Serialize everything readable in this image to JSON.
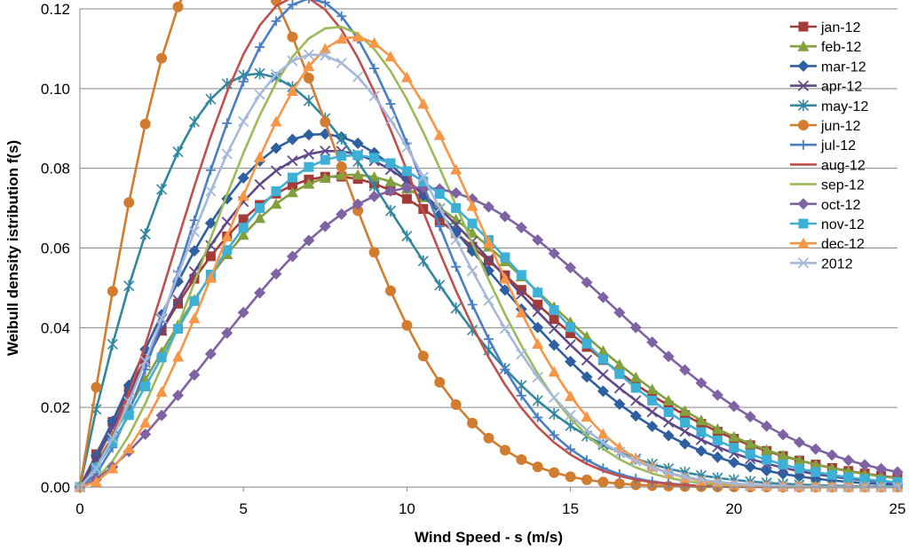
{
  "chart_data": {
    "type": "line",
    "title": "",
    "xlabel": "Wind Speed - s (m/s)",
    "ylabel": "Weibull density istribution f(s)",
    "xlim": [
      0,
      25
    ],
    "ylim": [
      0,
      0.12
    ],
    "xticks": [
      0,
      5,
      10,
      15,
      20,
      25
    ],
    "yticks": [
      "0.00",
      "0.02",
      "0.04",
      "0.06",
      "0.08",
      "0.10",
      "0.12"
    ],
    "x_step": 0.5,
    "grid": "horizontal",
    "legend_position": "right",
    "series": [
      {
        "name": "jan-12",
        "color": "#A33B38",
        "marker": "square",
        "weibull_k": 2.0,
        "weibull_c": 11.0
      },
      {
        "name": "feb-12",
        "color": "#82A03E",
        "marker": "triangle",
        "weibull_k": 2.1,
        "weibull_c": 11.3
      },
      {
        "name": "mar-12",
        "color": "#2E5FA0",
        "marker": "diamond",
        "weibull_k": 2.1,
        "weibull_c": 10.0
      },
      {
        "name": "apr-12",
        "color": "#5F4888",
        "marker": "x",
        "weibull_k": 2.1,
        "weibull_c": 10.5
      },
      {
        "name": "may-12",
        "color": "#31879E",
        "marker": "asterisk",
        "weibull_k": 1.9,
        "weibull_c": 8.0
      },
      {
        "name": "jun-12",
        "color": "#D27C2F",
        "marker": "circle",
        "weibull_k": 2.0,
        "weibull_c": 6.3
      },
      {
        "name": "jul-12",
        "color": "#4A7EC3",
        "marker": "plus",
        "weibull_k": 2.6,
        "weibull_c": 8.5
      },
      {
        "name": "aug-12",
        "color": "#C0504D",
        "marker": "none",
        "weibull_k": 2.5,
        "weibull_c": 8.2
      },
      {
        "name": "sep-12",
        "color": "#9BBB59",
        "marker": "none",
        "weibull_k": 2.7,
        "weibull_c": 9.3
      },
      {
        "name": "oct-12",
        "color": "#7F62A4",
        "marker": "diamond",
        "weibull_k": 2.4,
        "weibull_c": 13.0
      },
      {
        "name": "nov-12",
        "color": "#3EB0D6",
        "marker": "square",
        "weibull_k": 2.2,
        "weibull_c": 11.0
      },
      {
        "name": "dec-12",
        "color": "#F79646",
        "marker": "triangle",
        "weibull_k": 2.8,
        "weibull_c": 9.8
      },
      {
        "name": "2012",
        "color": "#A6B8DA",
        "marker": "x",
        "weibull_k": 2.4,
        "weibull_c": 9.0
      }
    ]
  }
}
